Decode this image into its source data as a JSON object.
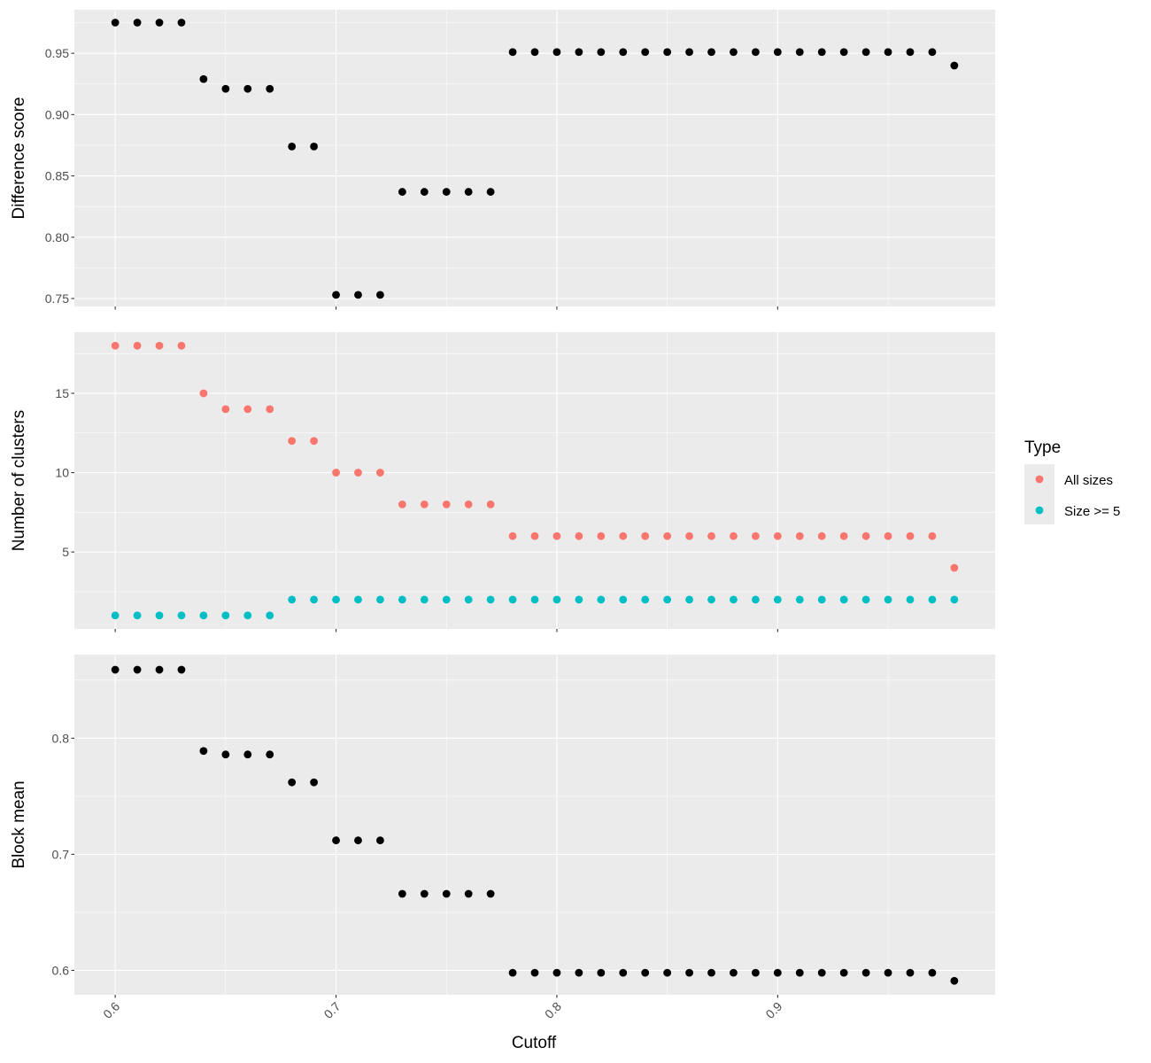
{
  "chart_data": {
    "type": "scatter",
    "xlabel": "Cutoff",
    "x_ticks": [
      0.6,
      0.7,
      0.8,
      0.9
    ],
    "x_tick_labels": [
      "0.6",
      "0.7",
      "0.8",
      "0.9"
    ],
    "xlim": [
      0.5815,
      0.9985
    ],
    "x": [
      0.6,
      0.61,
      0.62,
      0.63,
      0.64,
      0.65,
      0.66,
      0.67,
      0.68,
      0.69,
      0.7,
      0.71,
      0.72,
      0.73,
      0.74,
      0.75,
      0.76,
      0.77,
      0.78,
      0.79,
      0.8,
      0.81,
      0.82,
      0.83,
      0.84,
      0.85,
      0.86,
      0.87,
      0.88,
      0.89,
      0.9,
      0.91,
      0.92,
      0.93,
      0.94,
      0.95,
      0.96,
      0.97,
      0.98
    ],
    "grid": true,
    "panels": [
      {
        "ylabel": "Difference score",
        "ylim": [
          0.7435,
          0.9855
        ],
        "y_ticks": [
          0.75,
          0.8,
          0.85,
          0.9,
          0.95
        ],
        "y_tick_labels": [
          "0.75",
          "0.80",
          "0.85",
          "0.90",
          "0.95"
        ],
        "series": [
          {
            "color": "#000000",
            "values": [
              0.975,
              0.975,
              0.975,
              0.975,
              0.929,
              0.921,
              0.921,
              0.921,
              0.874,
              0.874,
              0.753,
              0.753,
              0.753,
              0.837,
              0.837,
              0.837,
              0.837,
              0.837,
              0.951,
              0.951,
              0.951,
              0.951,
              0.951,
              0.951,
              0.951,
              0.951,
              0.951,
              0.951,
              0.951,
              0.951,
              0.951,
              0.951,
              0.951,
              0.951,
              0.951,
              0.951,
              0.951,
              0.951,
              0.94
            ]
          }
        ]
      },
      {
        "ylabel": "Number of clusters",
        "ylim": [
          0.15,
          18.85
        ],
        "y_ticks": [
          5,
          10,
          15
        ],
        "y_tick_labels": [
          "5",
          "10",
          "15"
        ],
        "series": [
          {
            "name": "All sizes",
            "color": "#F8766D",
            "values": [
              18,
              18,
              18,
              18,
              15,
              14,
              14,
              14,
              12,
              12,
              10,
              10,
              10,
              8,
              8,
              8,
              8,
              8,
              6,
              6,
              6,
              6,
              6,
              6,
              6,
              6,
              6,
              6,
              6,
              6,
              6,
              6,
              6,
              6,
              6,
              6,
              6,
              6,
              4
            ]
          },
          {
            "name": "Size >= 5",
            "color": "#00BFC4",
            "values": [
              1,
              1,
              1,
              1,
              1,
              1,
              1,
              1,
              2,
              2,
              2,
              2,
              2,
              2,
              2,
              2,
              2,
              2,
              2,
              2,
              2,
              2,
              2,
              2,
              2,
              2,
              2,
              2,
              2,
              2,
              2,
              2,
              2,
              2,
              2,
              2,
              2,
              2,
              2
            ]
          }
        ]
      },
      {
        "ylabel": "Block mean",
        "ylim": [
          0.579,
          0.872
        ],
        "y_ticks": [
          0.6,
          0.7,
          0.8
        ],
        "y_tick_labels": [
          "0.6",
          "0.7",
          "0.8"
        ],
        "series": [
          {
            "color": "#000000",
            "values": [
              0.859,
              0.859,
              0.859,
              0.859,
              0.789,
              0.786,
              0.786,
              0.786,
              0.762,
              0.762,
              0.712,
              0.712,
              0.712,
              0.666,
              0.666,
              0.666,
              0.666,
              0.666,
              0.598,
              0.598,
              0.598,
              0.598,
              0.598,
              0.598,
              0.598,
              0.598,
              0.598,
              0.598,
              0.598,
              0.598,
              0.598,
              0.598,
              0.598,
              0.598,
              0.598,
              0.598,
              0.598,
              0.598,
              0.591
            ]
          }
        ]
      }
    ],
    "legend": {
      "title": "Type",
      "position": "right",
      "items": [
        {
          "label": "All sizes",
          "color": "#F8766D"
        },
        {
          "label": "Size >= 5",
          "color": "#00BFC4"
        }
      ]
    }
  }
}
